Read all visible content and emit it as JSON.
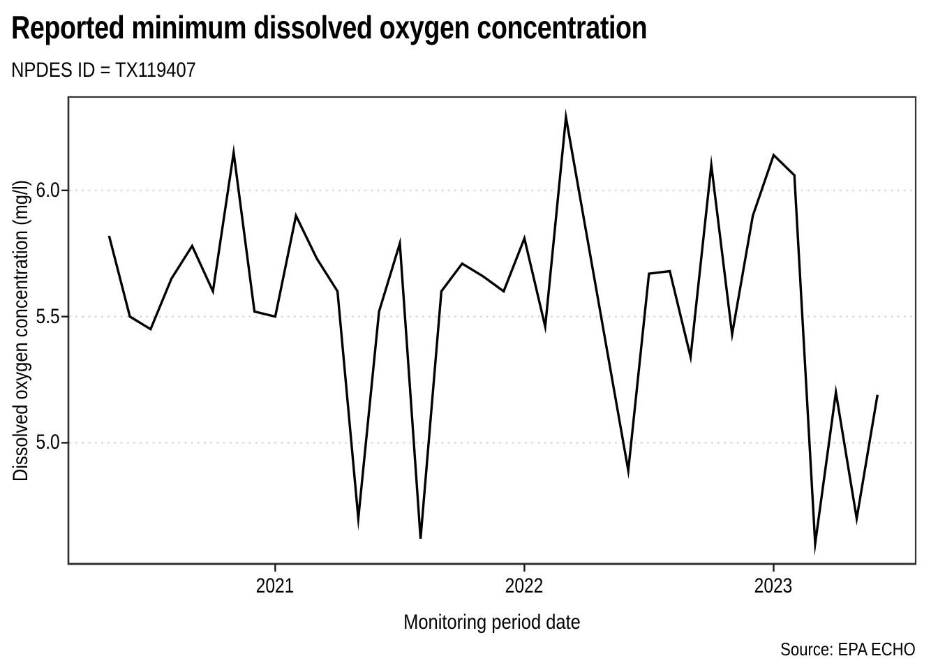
{
  "header": {
    "title": "Reported minimum dissolved oxygen concentration",
    "subtitle": "NPDES ID = TX119407"
  },
  "chart_data": {
    "type": "line",
    "title": "Reported minimum dissolved oxygen concentration",
    "subtitle": "NPDES ID = TX119407",
    "npdes_id": "TX119407",
    "xlabel": "Monitoring period date",
    "ylabel": "Dissolved oxygen concentration (mg/l)",
    "source": "Source: EPA ECHO",
    "legend": "none",
    "grid": "horizontal-dotted",
    "x_ticks": [
      "2021",
      "2022",
      "2023"
    ],
    "y_ticks": [
      {
        "value": 5.0,
        "label": "5.0"
      },
      {
        "value": 5.5,
        "label": "5.5"
      },
      {
        "value": 6.0,
        "label": "6.0"
      }
    ],
    "ylim": [
      4.52,
      6.37
    ],
    "xlim_decimal_years": [
      2020.17,
      2023.57
    ],
    "colors": {
      "line": "#000000",
      "grid": "#d9d9d9",
      "frame": "#333333",
      "tick": "#1a1a1a",
      "text": "#000000"
    },
    "points": [
      {
        "date": "2020-05",
        "value": 5.82
      },
      {
        "date": "2020-06",
        "value": 5.5
      },
      {
        "date": "2020-07",
        "value": 5.45
      },
      {
        "date": "2020-08",
        "value": 5.65
      },
      {
        "date": "2020-09",
        "value": 5.78
      },
      {
        "date": "2020-10",
        "value": 5.6
      },
      {
        "date": "2020-11",
        "value": 6.15
      },
      {
        "date": "2020-12",
        "value": 5.52
      },
      {
        "date": "2021-01",
        "value": 5.5
      },
      {
        "date": "2021-02",
        "value": 5.9
      },
      {
        "date": "2021-03",
        "value": 5.73
      },
      {
        "date": "2021-04",
        "value": 5.6
      },
      {
        "date": "2021-05",
        "value": 4.7
      },
      {
        "date": "2021-06",
        "value": 5.52
      },
      {
        "date": "2021-07",
        "value": 5.79
      },
      {
        "date": "2021-08",
        "value": 4.62
      },
      {
        "date": "2021-09",
        "value": 5.6
      },
      {
        "date": "2021-10",
        "value": 5.71
      },
      {
        "date": "2021-11",
        "value": 5.66
      },
      {
        "date": "2021-12",
        "value": 5.6
      },
      {
        "date": "2022-01",
        "value": 5.81
      },
      {
        "date": "2022-02",
        "value": 5.46
      },
      {
        "date": "2022-03",
        "value": 6.29
      },
      {
        "date": "2022-06",
        "value": 4.89
      },
      {
        "date": "2022-07",
        "value": 5.67
      },
      {
        "date": "2022-08",
        "value": 5.68
      },
      {
        "date": "2022-09",
        "value": 5.34
      },
      {
        "date": "2022-10",
        "value": 6.1
      },
      {
        "date": "2022-11",
        "value": 5.43
      },
      {
        "date": "2022-12",
        "value": 5.9
      },
      {
        "date": "2023-01",
        "value": 6.14
      },
      {
        "date": "2023-02",
        "value": 6.06
      },
      {
        "date": "2023-03",
        "value": 4.6
      },
      {
        "date": "2023-04",
        "value": 5.2
      },
      {
        "date": "2023-05",
        "value": 4.7
      },
      {
        "date": "2023-06",
        "value": 5.19
      }
    ]
  }
}
